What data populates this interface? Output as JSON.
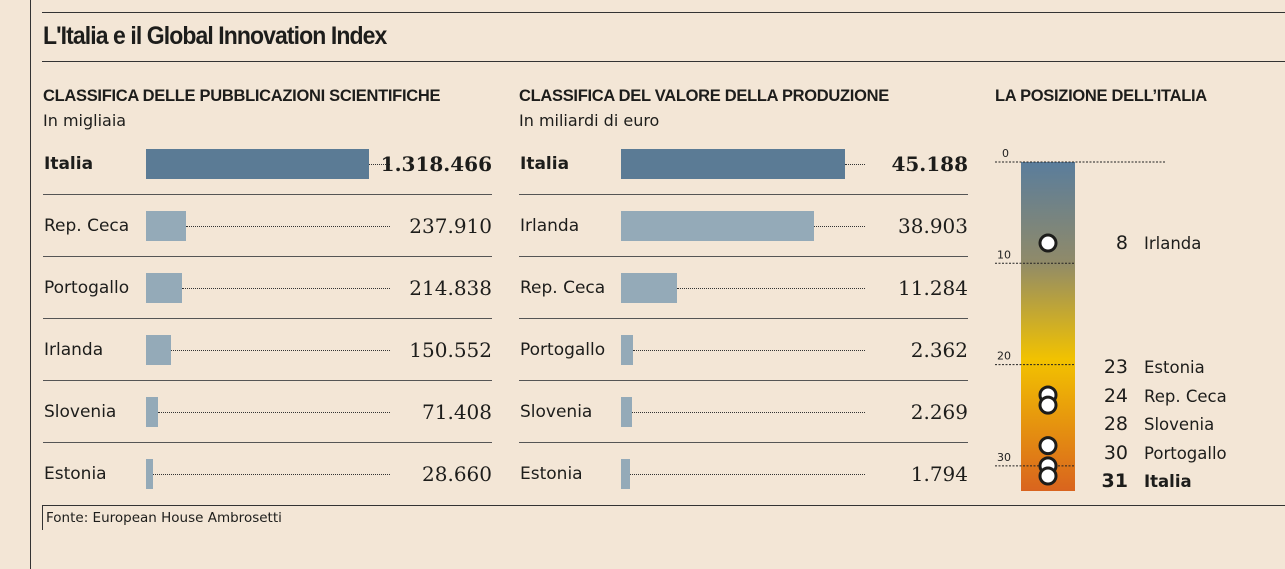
{
  "title": "L'Italia e il Global Innovation Index",
  "source": "Fonte: European House Ambrosetti",
  "colors": {
    "highlight": "#5b7b95",
    "bar": "#94aab8",
    "background": "#f3e6d6"
  },
  "chart_data": [
    {
      "type": "bar",
      "orientation": "horizontal",
      "title": "CLASSIFICA DELLE PUBBLICAZIONI SCIENTIFICHE",
      "subtitle": "In migliaia",
      "categories": [
        "Italia",
        "Rep. Ceca",
        "Portogallo",
        "Irlanda",
        "Slovenia",
        "Estonia"
      ],
      "values": [
        1318466,
        237910,
        214838,
        150552,
        71408,
        28660
      ],
      "labels": [
        "1.318.466",
        "237.910",
        "214.838",
        "150.552",
        "71.408",
        "28.660"
      ]
    },
    {
      "type": "bar",
      "orientation": "horizontal",
      "title": "CLASSIFICA DEL VALORE DELLA PRODUZIONE",
      "subtitle": "In miliardi di euro",
      "categories": [
        "Italia",
        "Irlanda",
        "Rep. Ceca",
        "Portogallo",
        "Slovenia",
        "Estonia"
      ],
      "values": [
        45188,
        38903,
        11284,
        2362,
        2269,
        1794
      ],
      "labels": [
        "45.188",
        "38.903",
        "11.284",
        "2.362",
        "2.269",
        "1.794"
      ]
    },
    {
      "type": "scatter",
      "title": "LA POSIZIONE DELL’ITALIA",
      "axis_ticks": [
        "0",
        "10",
        "20",
        "30"
      ],
      "ylim": [
        0,
        32.5
      ],
      "points": [
        {
          "rank": 8,
          "name": "Irlanda"
        },
        {
          "rank": 23,
          "name": "Estonia"
        },
        {
          "rank": 24,
          "name": "Rep. Ceca"
        },
        {
          "rank": 28,
          "name": "Slovenia"
        },
        {
          "rank": 30,
          "name": "Portogallo"
        },
        {
          "rank": 31,
          "name": "Italia"
        }
      ]
    }
  ]
}
